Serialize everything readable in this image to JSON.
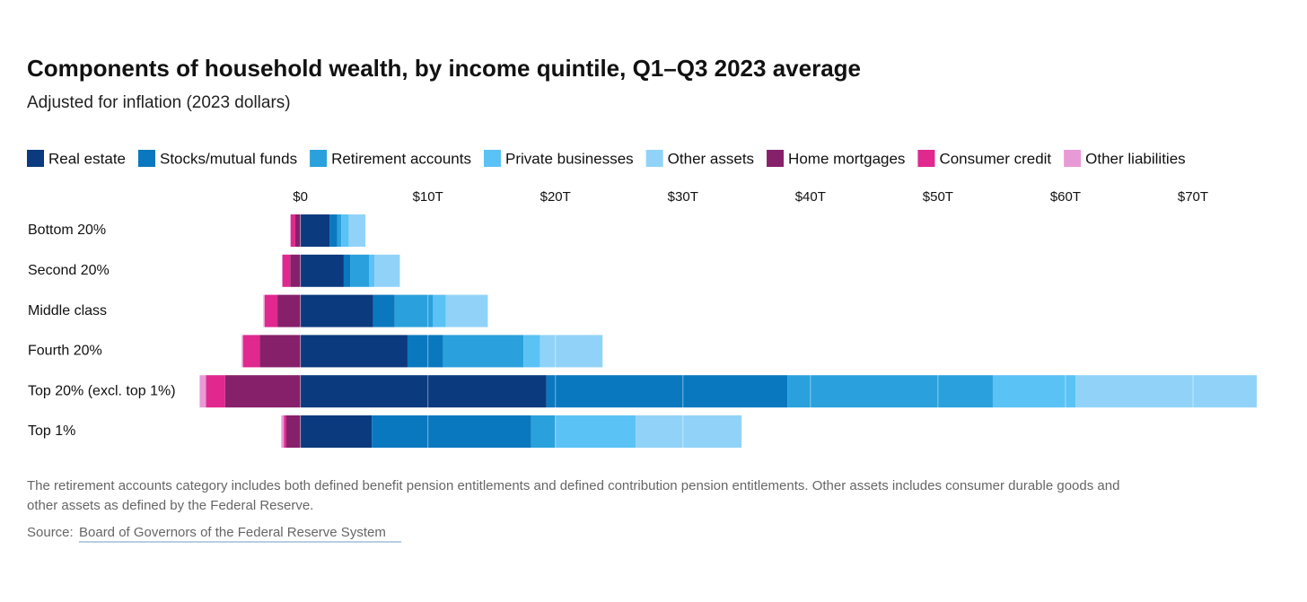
{
  "chart_data": {
    "type": "stacked-bar-horizontal",
    "title": "Components of household wealth, by income quintile, Q1–Q3 2023 average",
    "subtitle": "Adjusted for inflation (2023 dollars)",
    "note": [
      "The retirement accounts category includes both defined benefit pension entitlements and defined contribution pension entitlements. Other assets includes consumer durable goods and",
      "other assets as defined by the Federal Reserve."
    ],
    "source_label": "Source:",
    "source_link": "Board of Governors of the Federal Reserve System",
    "categories": [
      "Bottom 20%",
      "Second 20%",
      "Middle class",
      "Fourth 20%",
      "Top 20% (excl. top 1%)",
      "Top 1%"
    ],
    "series": [
      {
        "name": "Real estate",
        "color": "#0b3a7e",
        "values": [
          2.3,
          3.4,
          5.7,
          8.4,
          19.3,
          5.6
        ]
      },
      {
        "name": "Stocks/mutual funds",
        "color": "#0a78bf",
        "values": [
          0.6,
          0.5,
          1.7,
          2.8,
          18.9,
          12.5
        ]
      },
      {
        "name": "Retirement accounts",
        "color": "#2aa1dc",
        "values": [
          0.3,
          1.5,
          3.0,
          6.3,
          16.1,
          1.9
        ]
      },
      {
        "name": "Private businesses",
        "color": "#5bc2f5",
        "values": [
          0.6,
          0.4,
          1.0,
          1.3,
          6.5,
          6.3
        ]
      },
      {
        "name": "Other assets",
        "color": "#91d3f8",
        "values": [
          1.3,
          2.0,
          3.3,
          4.9,
          14.2,
          8.3
        ]
      },
      {
        "name": "Home mortgages",
        "color": "#87206b",
        "values": [
          -0.4,
          -0.8,
          -1.8,
          -3.2,
          -5.9,
          -1.1
        ]
      },
      {
        "name": "Consumer credit",
        "color": "#e0288f",
        "values": [
          -0.35,
          -0.6,
          -1.0,
          -1.3,
          -1.5,
          -0.2
        ]
      },
      {
        "name": "Other liabilities",
        "color": "#e79ad6",
        "values": [
          -0.05,
          -0.05,
          -0.1,
          -0.1,
          -0.5,
          -0.2
        ]
      }
    ],
    "xlim": [
      -8,
      75
    ],
    "xticks": [
      {
        "value": 0,
        "label": "$0"
      },
      {
        "value": 10,
        "label": "$10T"
      },
      {
        "value": 20,
        "label": "$20T"
      },
      {
        "value": 30,
        "label": "$30T"
      },
      {
        "value": 40,
        "label": "$40T"
      },
      {
        "value": 50,
        "label": "$50T"
      },
      {
        "value": 60,
        "label": "$60T"
      },
      {
        "value": 70,
        "label": "$70T"
      }
    ],
    "grid": true
  }
}
